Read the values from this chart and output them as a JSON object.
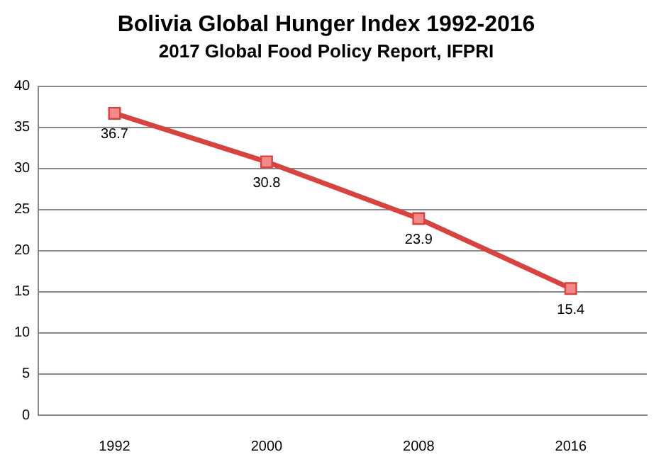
{
  "chart_data": {
    "type": "line",
    "title": "Bolivia Global Hunger Index 1992-2016",
    "subtitle": "2017 Global Food Policy Report, IFPRI",
    "categories": [
      "1992",
      "2000",
      "2008",
      "2016"
    ],
    "series": [
      {
        "color": "#d9433f",
        "values": [
          36.7,
          30.8,
          23.9,
          15.4
        ]
      }
    ],
    "ylim": [
      0,
      40
    ],
    "yticks": [
      0,
      5,
      10,
      15,
      20,
      25,
      30,
      35,
      40
    ],
    "grid": "y",
    "marker": "square",
    "line_style": "solid",
    "data_labels": true,
    "legend": false
  }
}
